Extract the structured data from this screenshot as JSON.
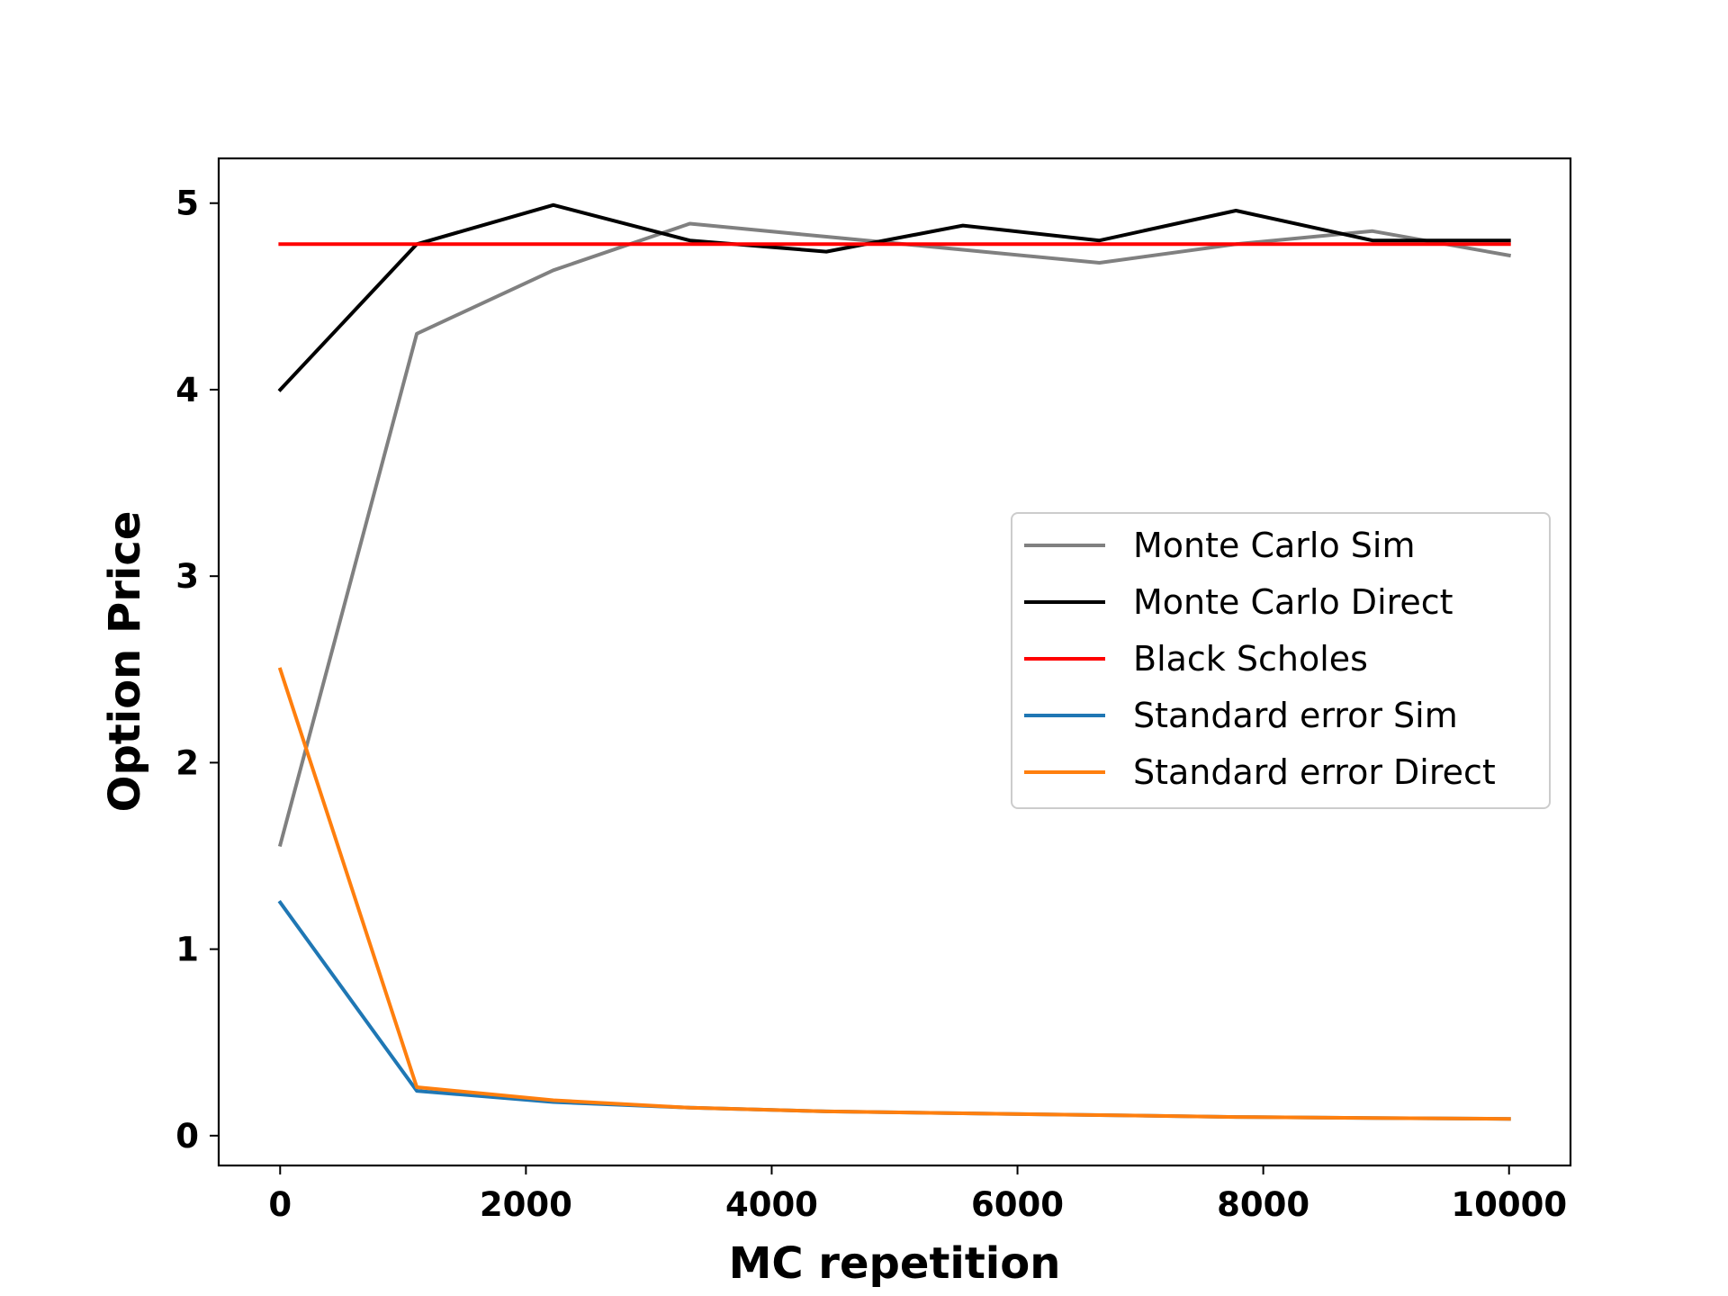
{
  "chart_data": {
    "type": "line",
    "title": "",
    "xlabel": "MC repetition",
    "ylabel": "Option Price",
    "xlim": [
      -500,
      10500
    ],
    "ylim": [
      -0.16,
      5.24
    ],
    "xticks": [
      0,
      2000,
      4000,
      6000,
      8000,
      10000
    ],
    "xtick_labels": [
      "0",
      "2000",
      "4000",
      "6000",
      "8000",
      "10000"
    ],
    "yticks": [
      0,
      1,
      2,
      3,
      4,
      5
    ],
    "ytick_labels": [
      "0",
      "1",
      "2",
      "3",
      "4",
      "5"
    ],
    "grid": false,
    "legend_position": "center-right",
    "x": [
      1,
      1112,
      2223,
      3334,
      4445,
      5556,
      6667,
      7778,
      8889,
      10000
    ],
    "series": [
      {
        "name": "Monte Carlo Sim",
        "color": "#808080",
        "values": [
          1.56,
          4.3,
          4.64,
          4.89,
          4.82,
          4.75,
          4.68,
          4.78,
          4.85,
          4.72
        ]
      },
      {
        "name": "Monte Carlo Direct",
        "color": "#000000",
        "values": [
          4.0,
          4.78,
          4.99,
          4.8,
          4.74,
          4.88,
          4.8,
          4.96,
          4.8,
          4.8
        ]
      },
      {
        "name": "Black Scholes",
        "color": "#ff0000",
        "values": [
          4.78,
          4.78,
          4.78,
          4.78,
          4.78,
          4.78,
          4.78,
          4.78,
          4.78,
          4.78
        ]
      },
      {
        "name": "Standard error Sim",
        "color": "#1f77b4",
        "values": [
          1.25,
          0.24,
          0.18,
          0.15,
          0.13,
          0.12,
          0.11,
          0.1,
          0.095,
          0.09
        ]
      },
      {
        "name": "Standard error Direct",
        "color": "#ff7f0e",
        "values": [
          2.5,
          0.26,
          0.19,
          0.15,
          0.13,
          0.12,
          0.11,
          0.1,
          0.095,
          0.09
        ]
      }
    ]
  }
}
